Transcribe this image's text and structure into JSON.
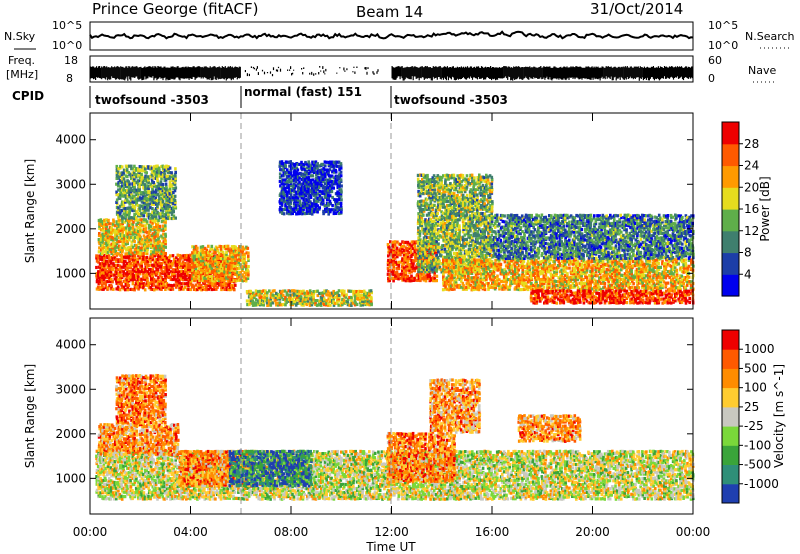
{
  "header": {
    "station": "Prince George (fitACF)",
    "beam": "Beam 14",
    "date": "31/Oct/2014"
  },
  "top_panels": {
    "nsky_label": "N.Sky",
    "nsky_ticks": [
      "10^5",
      "10^0"
    ],
    "nsearch_label": "N.Search",
    "nsearch_ticks": [
      "10^5",
      "10^0"
    ],
    "freq_label": "Freq.",
    "freq_unit": "[MHz]",
    "freq_ticks": [
      "18",
      "8"
    ],
    "nave_label": "Nave",
    "nave_ticks": [
      "60",
      "0"
    ],
    "cpid_label": "CPID",
    "cpid_segments": [
      {
        "label": "twofsound -3503",
        "start_h": 0,
        "end_h": 6
      },
      {
        "label": "normal (fast) 151",
        "start_h": 6,
        "end_h": 12
      },
      {
        "label": "twofsound -3503",
        "start_h": 12,
        "end_h": 24
      }
    ]
  },
  "chart_data": [
    {
      "type": "heatmap",
      "name": "power",
      "ylabel": "Slant Range [km]",
      "xlabel": "",
      "xlim_h": [
        0,
        24
      ],
      "ylim": [
        200,
        4600
      ],
      "yticks": [
        1000,
        2000,
        3000,
        4000
      ],
      "xticks": [
        "00:00",
        "04:00",
        "08:00",
        "12:00",
        "16:00",
        "20:00",
        "00:00"
      ],
      "colorbar_label": "Power [dB]",
      "colorbar_ticks": [
        "28",
        "24",
        "20",
        "16",
        "12",
        "8",
        "4"
      ],
      "colorbar_colors": [
        "#0000ee",
        "#1c3ea8",
        "#3f7f6e",
        "#5fae4a",
        "#e6dc1e",
        "#ff9a00",
        "#ff5a00",
        "#ee0000"
      ],
      "regions": [
        {
          "t0": 0.2,
          "t1": 5.8,
          "r0": 600,
          "r1": 1400,
          "level": 0.85
        },
        {
          "t0": 0.3,
          "t1": 3.0,
          "r0": 1400,
          "r1": 2200,
          "level": 0.6
        },
        {
          "t0": 1.0,
          "t1": 3.4,
          "r0": 2200,
          "r1": 3400,
          "level": 0.4
        },
        {
          "t0": 4.0,
          "t1": 6.3,
          "r0": 800,
          "r1": 1600,
          "level": 0.65
        },
        {
          "t0": 6.2,
          "t1": 11.2,
          "r0": 250,
          "r1": 600,
          "level": 0.55
        },
        {
          "t0": 7.5,
          "t1": 10.0,
          "r0": 2300,
          "r1": 3500,
          "level": 0.15
        },
        {
          "t0": 11.8,
          "t1": 13.8,
          "r0": 800,
          "r1": 1700,
          "level": 0.85
        },
        {
          "t0": 13.0,
          "t1": 16.0,
          "r0": 1000,
          "r1": 3200,
          "level": 0.45
        },
        {
          "t0": 14.0,
          "t1": 24.0,
          "r0": 600,
          "r1": 1300,
          "level": 0.65
        },
        {
          "t0": 16.0,
          "t1": 24.0,
          "r0": 1300,
          "r1": 2300,
          "level": 0.3
        },
        {
          "t0": 17.5,
          "t1": 24.0,
          "r0": 300,
          "r1": 600,
          "level": 0.9
        }
      ]
    },
    {
      "type": "heatmap",
      "name": "velocity",
      "ylabel": "Slant Range [km]",
      "xlabel": "Time UT",
      "xlim_h": [
        0,
        24
      ],
      "ylim": [
        200,
        4600
      ],
      "yticks": [
        1000,
        2000,
        3000,
        4000
      ],
      "xticks": [
        "00:00",
        "04:00",
        "08:00",
        "12:00",
        "16:00",
        "20:00",
        "00:00"
      ],
      "colorbar_label": "Velocity [m s^-1]",
      "colorbar_ticks": [
        "1000",
        "500",
        "100",
        "25",
        "-25",
        "-100",
        "-500",
        "-1000"
      ],
      "colorbar_colors": [
        "#1f3fb0",
        "#2f8f78",
        "#3aa43a",
        "#7ad83a",
        "#c8c8c0",
        "#ffcc30",
        "#ff8c00",
        "#ff5a00",
        "#ee0000"
      ],
      "regions": [
        {
          "t0": 0.2,
          "t1": 24.0,
          "r0": 500,
          "r1": 1600,
          "level": 0.5
        },
        {
          "t0": 0.3,
          "t1": 3.5,
          "r0": 1500,
          "r1": 2200,
          "level": 0.7
        },
        {
          "t0": 1.0,
          "t1": 3.0,
          "r0": 2200,
          "r1": 3300,
          "level": 0.75
        },
        {
          "t0": 3.5,
          "t1": 6.5,
          "r0": 800,
          "r1": 1600,
          "level": 0.75
        },
        {
          "t0": 5.5,
          "t1": 8.8,
          "r0": 800,
          "r1": 1600,
          "level": 0.15
        },
        {
          "t0": 11.8,
          "t1": 14.5,
          "r0": 900,
          "r1": 2000,
          "level": 0.75
        },
        {
          "t0": 13.5,
          "t1": 15.5,
          "r0": 2000,
          "r1": 3200,
          "level": 0.7
        },
        {
          "t0": 17.0,
          "t1": 19.5,
          "r0": 1800,
          "r1": 2400,
          "level": 0.7
        }
      ]
    }
  ]
}
